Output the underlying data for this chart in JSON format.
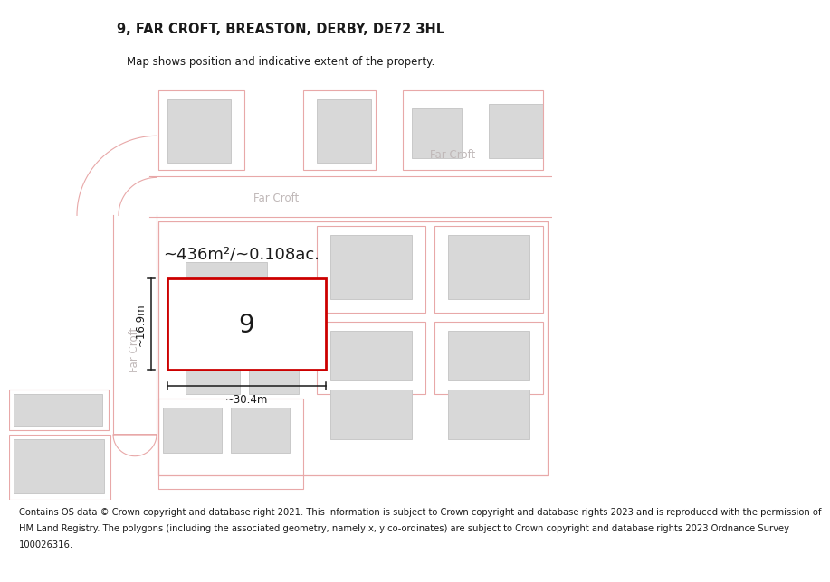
{
  "title": "9, FAR CROFT, BREASTON, DERBY, DE72 3HL",
  "subtitle": "Map shows position and indicative extent of the property.",
  "footer_lines": [
    "Contains OS data © Crown copyright and database right 2021. This information is subject to Crown copyright and database rights 2023 and is reproduced with the permission of",
    "HM Land Registry. The polygons (including the associated geometry, namely x, y co-ordinates) are subject to Crown copyright and database rights 2023 Ordnance Survey",
    "100026316."
  ],
  "bg_color": "#f7f7f7",
  "road_fill": "#ffffff",
  "road_outline": "#e0a0a0",
  "building_fill": "#d8d8d8",
  "building_edge_gray": "#c8c8c8",
  "building_edge_pink": "#e8a8a8",
  "plot_outline": "#e8a8a8",
  "highlight_fill": "#ffffff",
  "highlight_edge": "#cc0000",
  "street_color": "#c0b8b8",
  "dim_color": "#1a1a1a",
  "property_label": "9",
  "area_label": "~436m²/~0.108ac.",
  "width_label": "~30.4m",
  "height_label": "~16.9m",
  "street_name": "Far Croft",
  "title_fontsize": 10.5,
  "subtitle_fontsize": 8.5,
  "footer_fontsize": 7.2,
  "property_num_fontsize": 20,
  "area_fontsize": 13,
  "dim_fontsize": 8.5,
  "street_fontsize": 8.5
}
